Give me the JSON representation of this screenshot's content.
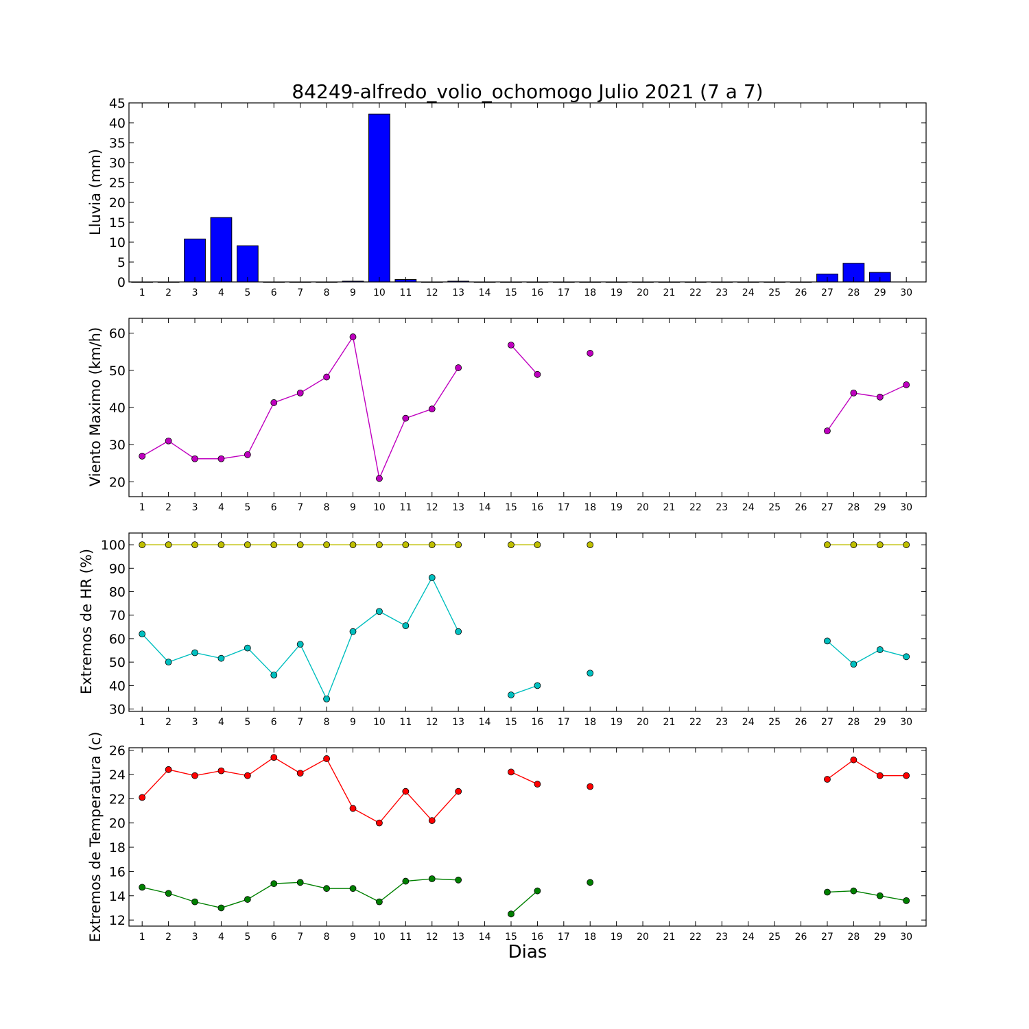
{
  "figure": {
    "title": "84249-alfredo_volio_ochomogo Julio 2021  (7 a 7)",
    "xlabel": "Dias"
  },
  "chart_data": [
    {
      "type": "bar",
      "ylabel": "Lluvia (mm)",
      "ylim": [
        0,
        45
      ],
      "yticks": [
        0,
        5,
        10,
        15,
        20,
        25,
        30,
        35,
        40,
        45
      ],
      "categories": [
        1,
        2,
        3,
        4,
        5,
        6,
        7,
        8,
        9,
        10,
        11,
        12,
        13,
        14,
        15,
        16,
        17,
        18,
        19,
        20,
        21,
        22,
        23,
        24,
        25,
        26,
        27,
        28,
        29,
        30
      ],
      "values": [
        0,
        0,
        10.8,
        16.2,
        9.1,
        0,
        0,
        0,
        0.2,
        42.2,
        0.6,
        0,
        0.2,
        0,
        0,
        0,
        0,
        0,
        0,
        0,
        0,
        0,
        0,
        0,
        0,
        0,
        2.0,
        4.7,
        2.4,
        null
      ],
      "color": "#0000ff"
    },
    {
      "type": "line",
      "ylabel": "Viento Maximo (km/h)",
      "ylim": [
        16,
        64
      ],
      "yticks": [
        20,
        30,
        40,
        50,
        60
      ],
      "x": [
        1,
        2,
        3,
        4,
        5,
        6,
        7,
        8,
        9,
        10,
        11,
        12,
        13,
        14,
        15,
        16,
        17,
        18,
        19,
        20,
        21,
        22,
        23,
        24,
        25,
        26,
        27,
        28,
        29,
        30
      ],
      "series": [
        {
          "color": "#bf00bf",
          "values": [
            26.9,
            31.0,
            26.2,
            26.2,
            27.3,
            41.3,
            43.9,
            48.2,
            59.0,
            20.9,
            37.1,
            39.6,
            50.7,
            null,
            56.8,
            48.9,
            null,
            54.6,
            null,
            null,
            null,
            null,
            null,
            null,
            null,
            null,
            33.7,
            43.9,
            42.8,
            46.1
          ]
        }
      ]
    },
    {
      "type": "line",
      "ylabel": "Extremos de HR (%)",
      "ylim": [
        29,
        105
      ],
      "yticks": [
        30,
        40,
        50,
        60,
        70,
        80,
        90,
        100
      ],
      "x": [
        1,
        2,
        3,
        4,
        5,
        6,
        7,
        8,
        9,
        10,
        11,
        12,
        13,
        14,
        15,
        16,
        17,
        18,
        19,
        20,
        21,
        22,
        23,
        24,
        25,
        26,
        27,
        28,
        29,
        30
      ],
      "series": [
        {
          "color": "#bfbf00",
          "values": [
            100,
            100,
            100,
            100,
            100,
            100,
            100,
            100,
            100,
            100,
            100,
            100,
            100,
            null,
            100,
            100,
            null,
            100,
            null,
            null,
            null,
            null,
            null,
            null,
            null,
            null,
            100,
            100,
            100,
            100
          ]
        },
        {
          "color": "#00bfbf",
          "values": [
            62,
            50,
            54,
            51.6,
            56,
            44.5,
            57.6,
            34.3,
            63,
            71.6,
            65.5,
            86,
            63,
            null,
            36,
            40,
            null,
            45.3,
            null,
            null,
            null,
            null,
            null,
            null,
            null,
            null,
            59,
            49.1,
            55.3,
            52.3
          ]
        }
      ]
    },
    {
      "type": "line",
      "ylabel": "Extremos de Temperatura (c)",
      "ylim": [
        11.5,
        26.2
      ],
      "yticks": [
        12,
        14,
        16,
        18,
        20,
        22,
        24,
        26
      ],
      "x": [
        1,
        2,
        3,
        4,
        5,
        6,
        7,
        8,
        9,
        10,
        11,
        12,
        13,
        14,
        15,
        16,
        17,
        18,
        19,
        20,
        21,
        22,
        23,
        24,
        25,
        26,
        27,
        28,
        29,
        30
      ],
      "series": [
        {
          "color": "#ff0000",
          "values": [
            22.1,
            24.4,
            23.9,
            24.3,
            23.9,
            25.4,
            24.1,
            25.3,
            21.2,
            20.0,
            22.6,
            20.2,
            22.6,
            null,
            24.2,
            23.2,
            null,
            23.0,
            null,
            null,
            null,
            null,
            null,
            null,
            null,
            null,
            23.6,
            25.2,
            23.9,
            23.9
          ]
        },
        {
          "color": "#008000",
          "values": [
            14.7,
            14.2,
            13.5,
            13.0,
            13.7,
            15.0,
            15.1,
            14.6,
            14.6,
            13.5,
            15.2,
            15.4,
            15.3,
            null,
            12.5,
            14.4,
            null,
            15.1,
            null,
            null,
            null,
            null,
            null,
            null,
            null,
            null,
            14.3,
            14.4,
            14.0,
            13.6
          ]
        }
      ]
    }
  ]
}
